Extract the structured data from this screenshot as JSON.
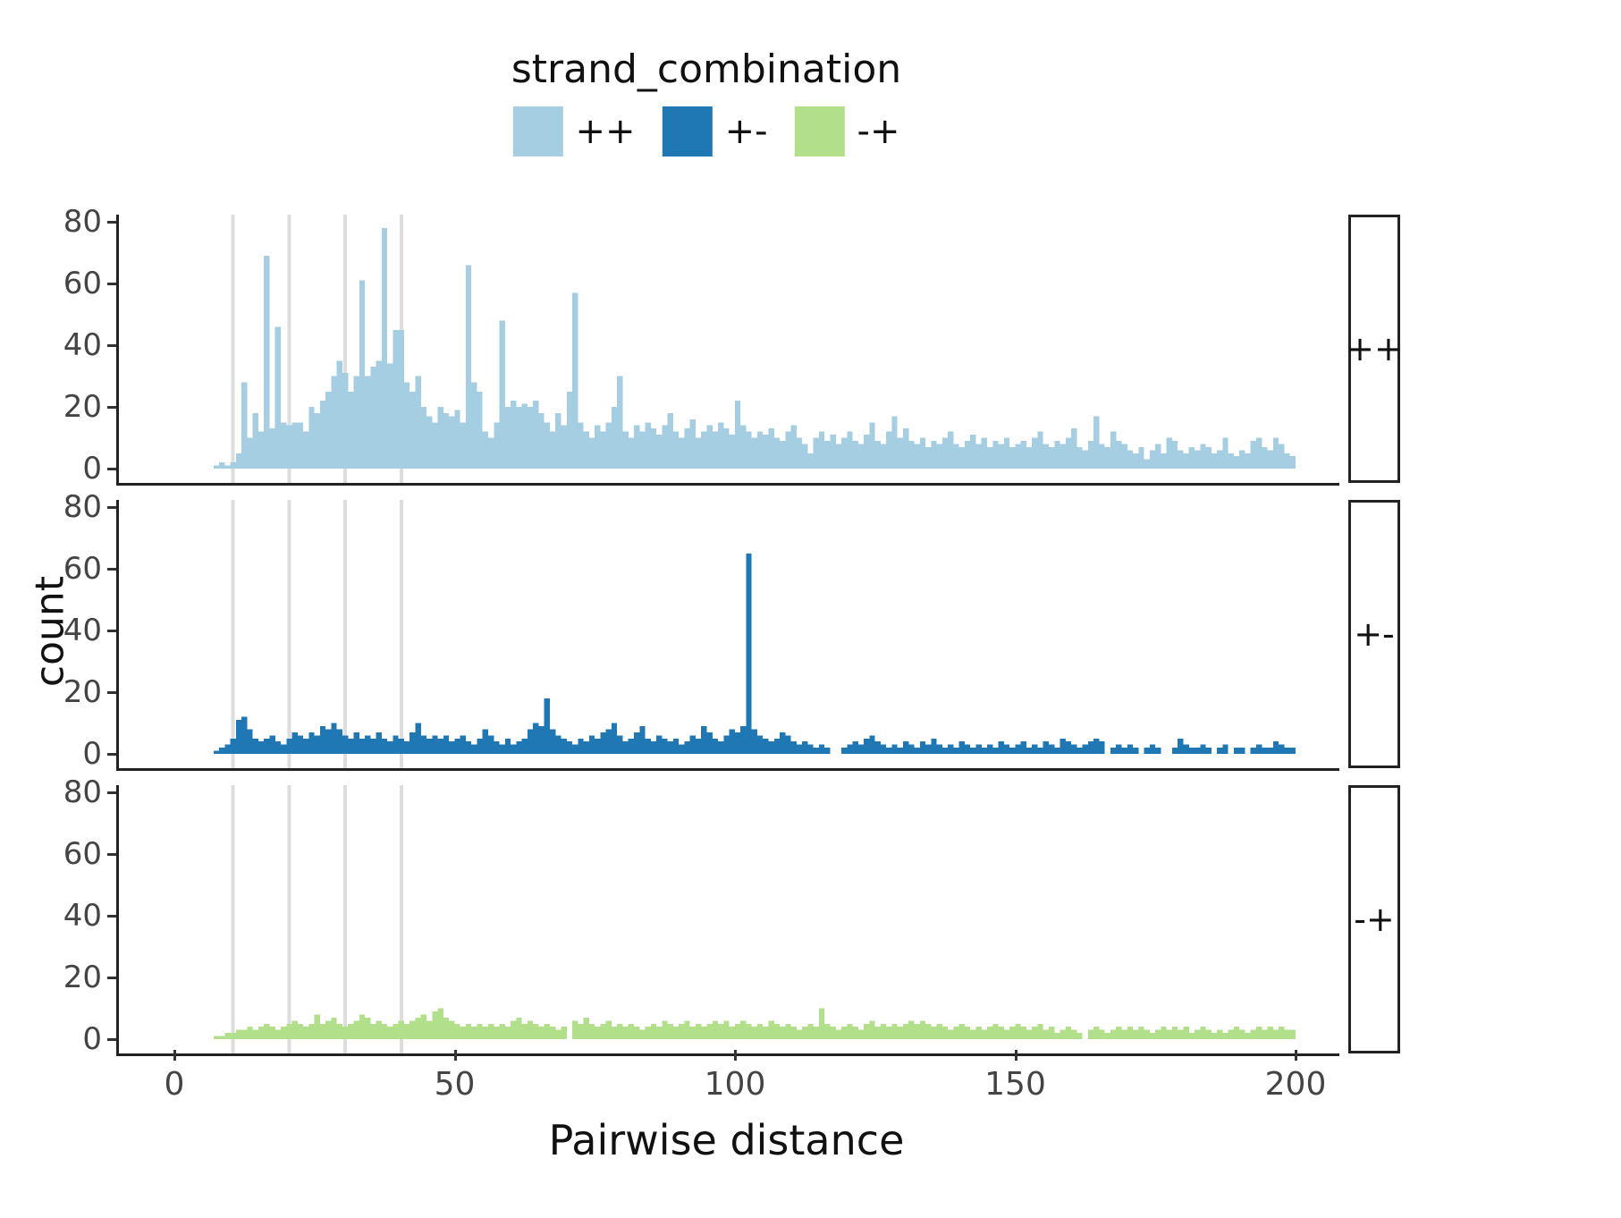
{
  "legend": {
    "title": "strand_combination",
    "items": [
      {
        "label": "++"
      },
      {
        "label": "+-"
      },
      {
        "label": "-+"
      }
    ]
  },
  "axes": {
    "x_label": "Pairwise distance",
    "y_label": "count",
    "x_ticks": [
      0,
      50,
      100,
      150,
      200
    ],
    "y_ticks": [
      0,
      20,
      40,
      60,
      80
    ]
  },
  "facets": [
    "++",
    "+-",
    "-+"
  ],
  "chart_data": {
    "type": "bar",
    "subtype": "faceted-histogram",
    "title": "",
    "xlabel": "Pairwise distance",
    "ylabel": "count",
    "legend_title": "strand_combination",
    "legend_position": "top",
    "x_range": [
      0,
      200
    ],
    "y_range": [
      0,
      80
    ],
    "bin_width": 1,
    "x_start": 7,
    "vlines": [
      10,
      20,
      30,
      40
    ],
    "colors": {
      "++": "#a6cee3",
      "+-": "#1f78b4",
      "-+": "#b2df8a"
    },
    "series": [
      {
        "name": "++",
        "color": "#a6cee3",
        "values": [
          1,
          2,
          1,
          2,
          5,
          28,
          10,
          18,
          12,
          69,
          13,
          46,
          15,
          14,
          15,
          15,
          12,
          20,
          18,
          22,
          25,
          30,
          35,
          31,
          25,
          30,
          61,
          30,
          33,
          35,
          78,
          34,
          45,
          45,
          28,
          25,
          30,
          20,
          17,
          15,
          20,
          18,
          17,
          19,
          15,
          66,
          28,
          25,
          12,
          10,
          15,
          48,
          20,
          22,
          20,
          21,
          20,
          22,
          18,
          15,
          12,
          18,
          14,
          25,
          57,
          15,
          12,
          10,
          14,
          12,
          15,
          20,
          30,
          12,
          10,
          14,
          12,
          15,
          13,
          11,
          14,
          18,
          12,
          10,
          13,
          16,
          10,
          12,
          14,
          12,
          15,
          13,
          11,
          22,
          14,
          12,
          10,
          12,
          11,
          13,
          10,
          9,
          12,
          14,
          10,
          8,
          5,
          10,
          12,
          9,
          11,
          8,
          10,
          12,
          9,
          8,
          11,
          15,
          9,
          8,
          12,
          17,
          10,
          13,
          9,
          8,
          10,
          7,
          9,
          8,
          10,
          12,
          8,
          7,
          9,
          11,
          8,
          10,
          7,
          9,
          8,
          10,
          7,
          8,
          9,
          7,
          10,
          12,
          8,
          7,
          9,
          8,
          10,
          13,
          7,
          6,
          9,
          17,
          8,
          7,
          12,
          9,
          8,
          6,
          5,
          7,
          3,
          6,
          8,
          5,
          10,
          9,
          6,
          5,
          7,
          6,
          8,
          7,
          5,
          6,
          10,
          5,
          4,
          6,
          5,
          9,
          10,
          7,
          6,
          10,
          8,
          5,
          4
        ]
      },
      {
        "name": "+-",
        "color": "#1f78b4",
        "values": [
          1,
          2,
          3,
          5,
          11,
          12,
          8,
          5,
          4,
          5,
          6,
          4,
          3,
          5,
          7,
          6,
          5,
          7,
          6,
          9,
          8,
          10,
          8,
          6,
          5,
          7,
          5,
          6,
          5,
          7,
          5,
          4,
          6,
          5,
          4,
          7,
          10,
          6,
          5,
          6,
          5,
          6,
          4,
          5,
          6,
          4,
          3,
          5,
          8,
          6,
          4,
          3,
          5,
          3,
          4,
          5,
          8,
          10,
          9,
          18,
          8,
          6,
          5,
          4,
          3,
          5,
          4,
          6,
          5,
          7,
          8,
          10,
          6,
          4,
          5,
          7,
          9,
          5,
          4,
          6,
          5,
          4,
          5,
          3,
          4,
          6,
          5,
          9,
          7,
          5,
          4,
          6,
          8,
          7,
          9,
          65,
          8,
          6,
          5,
          4,
          5,
          7,
          6,
          4,
          3,
          4,
          3,
          2,
          3,
          2,
          0,
          0,
          2,
          3,
          4,
          3,
          5,
          6,
          4,
          3,
          2,
          3,
          2,
          4,
          3,
          2,
          4,
          3,
          5,
          3,
          2,
          3,
          2,
          4,
          3,
          2,
          3,
          2,
          3,
          2,
          4,
          3,
          2,
          3,
          4,
          2,
          3,
          2,
          4,
          3,
          2,
          5,
          4,
          3,
          2,
          3,
          4,
          5,
          4,
          0,
          2,
          3,
          2,
          3,
          2,
          0,
          2,
          3,
          2,
          0,
          0,
          2,
          5,
          3,
          2,
          2,
          3,
          2,
          0,
          2,
          3,
          0,
          2,
          2,
          0,
          2,
          3,
          2,
          2,
          4,
          3,
          2,
          2
        ]
      },
      {
        "name": "-+",
        "color": "#b2df8a",
        "values": [
          1,
          1,
          2,
          2,
          3,
          3,
          4,
          3,
          4,
          5,
          4,
          3,
          4,
          5,
          6,
          5,
          4,
          5,
          8,
          5,
          6,
          7,
          5,
          4,
          5,
          6,
          8,
          7,
          5,
          6,
          5,
          4,
          5,
          6,
          5,
          6,
          7,
          8,
          6,
          9,
          10,
          7,
          6,
          5,
          4,
          5,
          4,
          5,
          4,
          5,
          4,
          5,
          4,
          6,
          7,
          5,
          6,
          5,
          4,
          5,
          4,
          3,
          4,
          0,
          6,
          5,
          7,
          5,
          4,
          5,
          6,
          4,
          5,
          4,
          5,
          4,
          3,
          4,
          5,
          4,
          6,
          5,
          4,
          5,
          6,
          4,
          5,
          4,
          5,
          6,
          5,
          6,
          4,
          5,
          6,
          5,
          4,
          5,
          4,
          6,
          5,
          4,
          5,
          4,
          3,
          4,
          5,
          4,
          10,
          5,
          4,
          3,
          4,
          5,
          4,
          3,
          5,
          6,
          4,
          5,
          4,
          5,
          4,
          5,
          6,
          5,
          6,
          5,
          4,
          5,
          4,
          3,
          4,
          5,
          4,
          3,
          4,
          3,
          4,
          5,
          4,
          3,
          4,
          5,
          4,
          3,
          4,
          5,
          3,
          4,
          2,
          3,
          4,
          3,
          2,
          0,
          3,
          4,
          3,
          2,
          3,
          4,
          3,
          4,
          3,
          4,
          3,
          2,
          3,
          4,
          3,
          4,
          3,
          4,
          2,
          3,
          4,
          3,
          2,
          3,
          2,
          3,
          4,
          3,
          2,
          3,
          4,
          3,
          4,
          3,
          4,
          3,
          3
        ]
      }
    ]
  }
}
